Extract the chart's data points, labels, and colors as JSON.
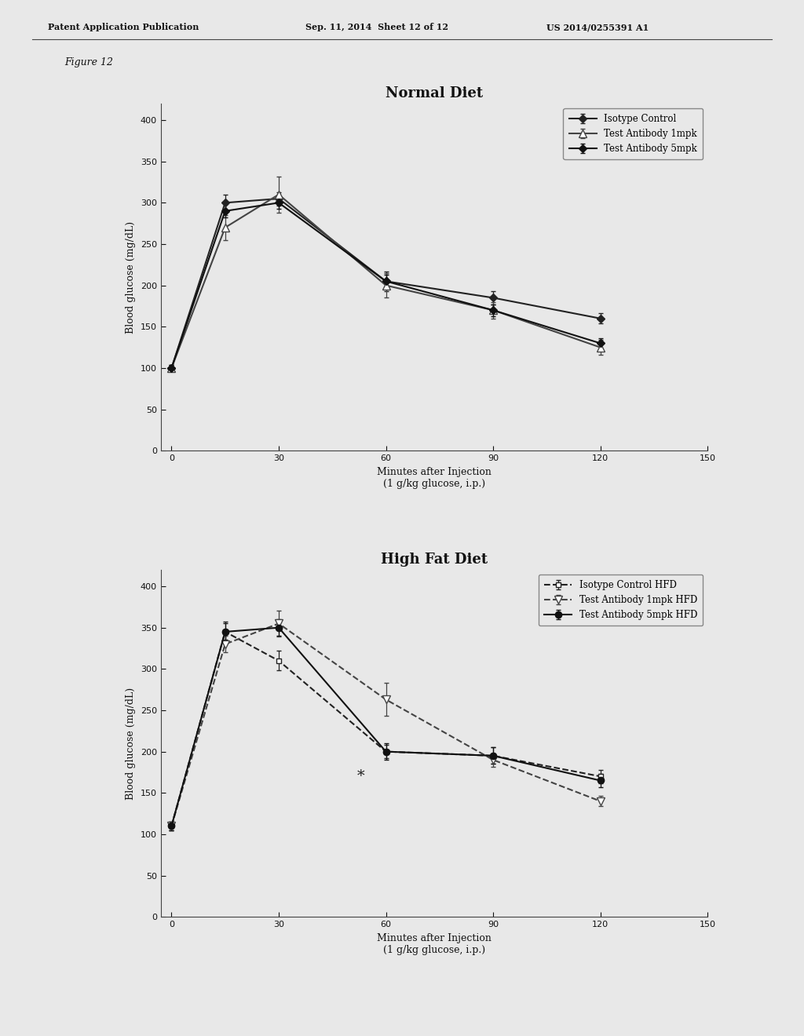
{
  "page_header_left": "Patent Application Publication",
  "page_header_mid": "Sep. 11, 2014  Sheet 12 of 12",
  "page_header_right": "US 2014/0255391 A1",
  "figure_label": "Figure 12",
  "background_color": "#e8e8e8",
  "plot1": {
    "title": "Normal Diet",
    "title_fontsize": 13,
    "title_fontweight": "bold",
    "xlabel": "Minutes after Injection\n(1 g/kg glucose, i.p.)",
    "ylabel": "Blood glucose (mg/dL)",
    "xlim": [
      -3,
      150
    ],
    "ylim": [
      0,
      420
    ],
    "xticks": [
      0,
      30,
      60,
      90,
      120,
      150
    ],
    "yticks": [
      0,
      50,
      100,
      150,
      200,
      250,
      300,
      350,
      400
    ],
    "series": [
      {
        "label": "Isotype Control",
        "x": [
          0,
          15,
          30,
          60,
          90,
          120
        ],
        "y": [
          100,
          300,
          305,
          205,
          185,
          160
        ],
        "yerr": [
          4,
          10,
          8,
          12,
          8,
          6
        ],
        "color": "#222222",
        "marker": "D",
        "markersize": 5,
        "markerfacecolor": "#222222",
        "linestyle": "-",
        "linewidth": 1.5
      },
      {
        "label": "Test Antibody 1mpk",
        "x": [
          0,
          15,
          30,
          60,
          90,
          120
        ],
        "y": [
          100,
          270,
          310,
          200,
          170,
          125
        ],
        "yerr": [
          4,
          15,
          22,
          15,
          10,
          9
        ],
        "color": "#444444",
        "marker": "^",
        "markersize": 7,
        "markerfacecolor": "#ffffff",
        "linestyle": "-",
        "linewidth": 1.5
      },
      {
        "label": "Test Antibody 5mpk",
        "x": [
          0,
          15,
          30,
          60,
          90,
          120
        ],
        "y": [
          100,
          290,
          300,
          205,
          170,
          130
        ],
        "yerr": [
          4,
          8,
          7,
          8,
          7,
          6
        ],
        "color": "#111111",
        "marker": "D",
        "markersize": 5,
        "markerfacecolor": "#111111",
        "linestyle": "-",
        "linewidth": 1.5
      }
    ]
  },
  "plot2": {
    "title": "High Fat Diet",
    "title_fontsize": 13,
    "title_fontweight": "bold",
    "xlabel": "Minutes after Injection\n(1 g/kg glucose, i.p.)",
    "ylabel": "Blood glucose (mg/dL)",
    "xlim": [
      -3,
      150
    ],
    "ylim": [
      0,
      420
    ],
    "xticks": [
      0,
      30,
      60,
      90,
      120,
      150
    ],
    "yticks": [
      0,
      50,
      100,
      150,
      200,
      250,
      300,
      350,
      400
    ],
    "asterisk_x": 53,
    "asterisk_y": 162,
    "series": [
      {
        "label": "Isotype Control HFD",
        "x": [
          0,
          15,
          30,
          60,
          90,
          120
        ],
        "y": [
          110,
          345,
          310,
          200,
          195,
          170
        ],
        "yerr": [
          5,
          12,
          12,
          8,
          10,
          8
        ],
        "color": "#222222",
        "marker": "s",
        "markersize": 5,
        "markerfacecolor": "#ffffff",
        "linestyle": "--",
        "linewidth": 1.5
      },
      {
        "label": "Test Antibody 1mpk HFD",
        "x": [
          0,
          15,
          30,
          60,
          90,
          120
        ],
        "y": [
          110,
          330,
          355,
          263,
          190,
          140
        ],
        "yerr": [
          5,
          10,
          16,
          20,
          8,
          6
        ],
        "color": "#444444",
        "marker": "v",
        "markersize": 7,
        "markerfacecolor": "#ffffff",
        "linestyle": "--",
        "linewidth": 1.5
      },
      {
        "label": "Test Antibody 5mpk HFD",
        "x": [
          0,
          15,
          30,
          60,
          90,
          120
        ],
        "y": [
          110,
          345,
          350,
          200,
          195,
          165
        ],
        "yerr": [
          5,
          10,
          10,
          10,
          10,
          8
        ],
        "color": "#111111",
        "marker": "o",
        "markersize": 6,
        "markerfacecolor": "#111111",
        "linestyle": "-",
        "linewidth": 1.5
      }
    ]
  }
}
